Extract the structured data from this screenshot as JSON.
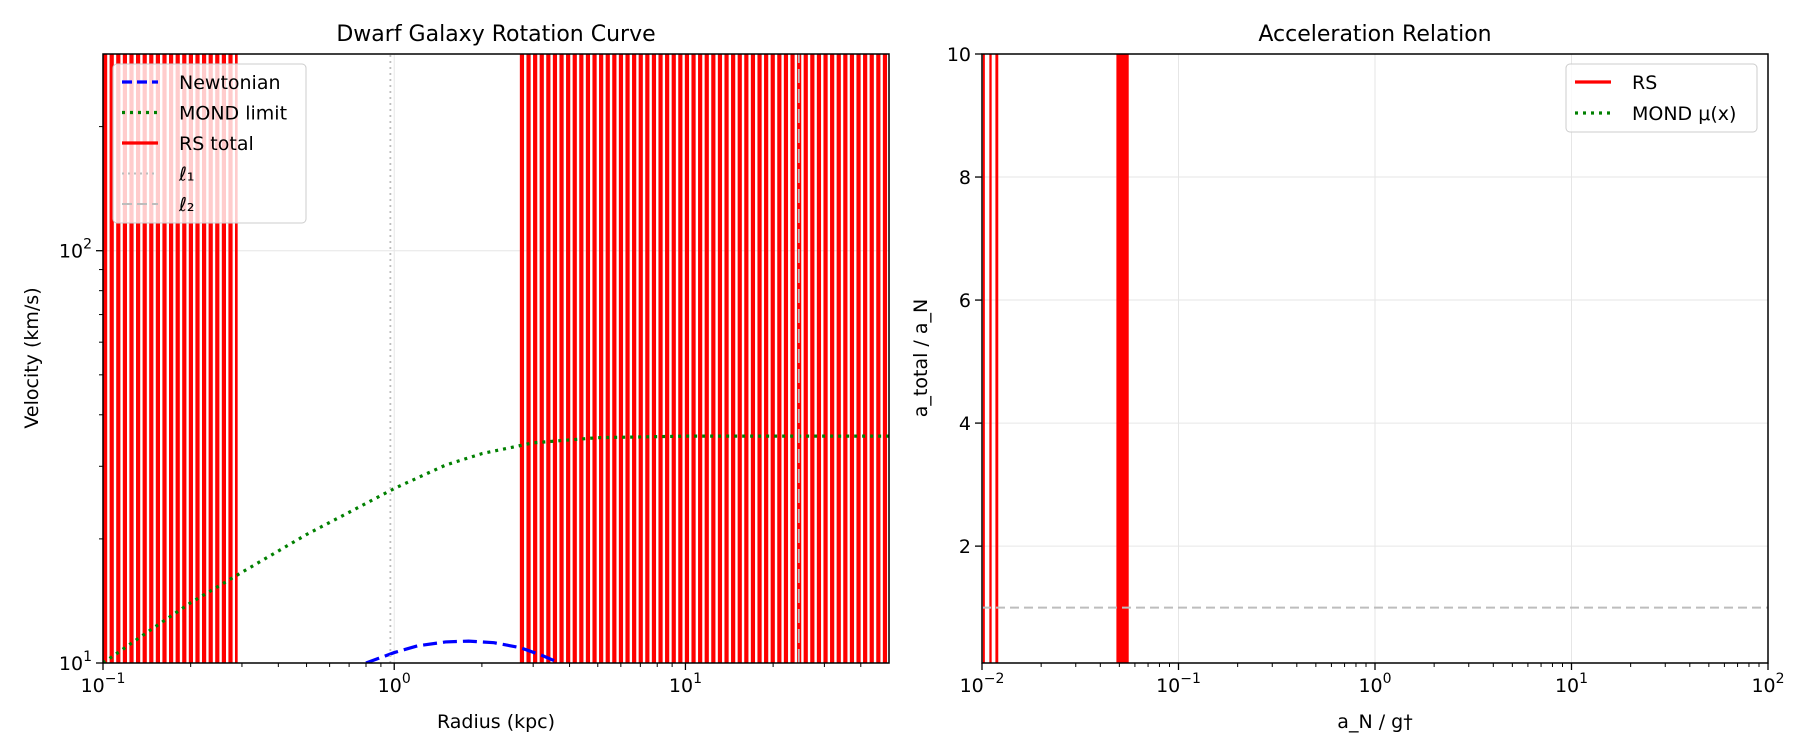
{
  "chart_data": [
    {
      "type": "line",
      "title": "Dwarf Galaxy Rotation Curve",
      "xlabel": "Radius (kpc)",
      "ylabel": "Velocity (km/s)",
      "xscale": "log",
      "yscale": "log",
      "xlim": [
        0.1,
        50
      ],
      "ylim": [
        10,
        300
      ],
      "grid": true,
      "legend_position": "top-left",
      "x_ticks": [
        {
          "value": 0.1,
          "base": "10",
          "exp": "−1"
        },
        {
          "value": 1,
          "base": "10",
          "exp": "0"
        },
        {
          "value": 10,
          "base": "10",
          "exp": "1"
        }
      ],
      "y_ticks": [
        {
          "value": 10,
          "base": "10",
          "exp": "1"
        },
        {
          "value": 100,
          "base": "10",
          "exp": "2"
        }
      ],
      "series": [
        {
          "name": "Newtonian",
          "color": "#0000ff",
          "style": "dashed",
          "x": [
            0.8,
            1.0,
            1.2,
            1.5,
            1.8,
            2.2,
            2.7,
            3.2,
            3.7
          ],
          "y": [
            10.0,
            10.6,
            11.0,
            11.25,
            11.3,
            11.2,
            10.9,
            10.45,
            10.0
          ]
        },
        {
          "name": "MOND limit",
          "color": "#008000",
          "style": "dotted",
          "x": [
            0.1,
            0.15,
            0.2,
            0.3,
            0.5,
            0.7,
            1.0,
            1.5,
            2.0,
            3.0,
            5.0,
            10.0,
            20.0,
            50.0
          ],
          "y": [
            10.0,
            12.2,
            14.0,
            16.6,
            20.5,
            23.2,
            26.5,
            30.2,
            32.2,
            34.2,
            35.2,
            35.5,
            35.5,
            35.5
          ]
        },
        {
          "name": "RS total",
          "color": "#ff0000",
          "style": "solid",
          "x": [
            0.11,
            0.14,
            0.18,
            0.22,
            0.28,
            2.8,
            3.5,
            5.0,
            7.0,
            10.0,
            14.0,
            20.0,
            28.0,
            40.0,
            48.0
          ],
          "y": [
            10.0,
            300.0,
            10.0,
            300.0,
            10.0,
            300.0,
            10.0,
            300.0,
            10.0,
            300.0,
            10.0,
            300.0,
            10.0,
            300.0,
            10.0
          ]
        },
        {
          "name": "ℓ₁",
          "color": "#bdbdbd",
          "style": "dotted",
          "x": [
            0.97,
            0.97
          ],
          "y": [
            10,
            300
          ]
        },
        {
          "name": "ℓ₂",
          "color": "#bdbdbd",
          "style": "dashed",
          "x": [
            24.5,
            24.5
          ],
          "y": [
            10,
            300
          ]
        }
      ],
      "rs_fill": {
        "color": "#ff0000",
        "band_ranges": [
          [
            0.1,
            0.29
          ],
          [
            2.7,
            50
          ]
        ],
        "note": "RS total oscillates rapidly between axis limits in these ranges"
      }
    },
    {
      "type": "line",
      "title": "Acceleration Relation",
      "xlabel": "a_N / g†",
      "ylabel": "a_total / a_N",
      "xscale": "log",
      "yscale": "linear",
      "xlim": [
        0.01,
        100
      ],
      "ylim": [
        0.1,
        10
      ],
      "grid": true,
      "legend_position": "top-right",
      "x_ticks": [
        {
          "value": 0.01,
          "base": "10",
          "exp": "−2"
        },
        {
          "value": 0.1,
          "base": "10",
          "exp": "−1"
        },
        {
          "value": 1,
          "base": "10",
          "exp": "0"
        },
        {
          "value": 10,
          "base": "10",
          "exp": "1"
        },
        {
          "value": 100,
          "base": "10",
          "exp": "2"
        }
      ],
      "y_ticks": [
        {
          "value": 2,
          "label": "2"
        },
        {
          "value": 4,
          "label": "4"
        },
        {
          "value": 6,
          "label": "6"
        },
        {
          "value": 8,
          "label": "8"
        },
        {
          "value": 10,
          "label": "10"
        }
      ],
      "series": [
        {
          "name": "RS",
          "color": "#ff0000",
          "style": "solid",
          "x": [
            0.0102,
            0.0106,
            0.011,
            0.0114,
            0.0118,
            0.0122,
            0.049,
            0.05,
            0.051,
            0.052,
            0.053,
            0.054
          ],
          "y": [
            0.1,
            10,
            0.1,
            10,
            0.1,
            10,
            0.1,
            10,
            0.1,
            10,
            0.1,
            10
          ]
        },
        {
          "name": "MOND μ(x)",
          "color": "#008000",
          "style": "dotted",
          "x": [],
          "y": []
        }
      ],
      "reference_line": {
        "y": 1.0,
        "color": "#bdbdbd",
        "style": "dashed"
      },
      "rs_fill": {
        "color": "#ff0000",
        "band_ranges": [
          [
            0.0101,
            0.0103
          ],
          [
            0.0109,
            0.0112
          ],
          [
            0.0117,
            0.0121
          ],
          [
            0.0483,
            0.0558
          ]
        ]
      }
    }
  ]
}
